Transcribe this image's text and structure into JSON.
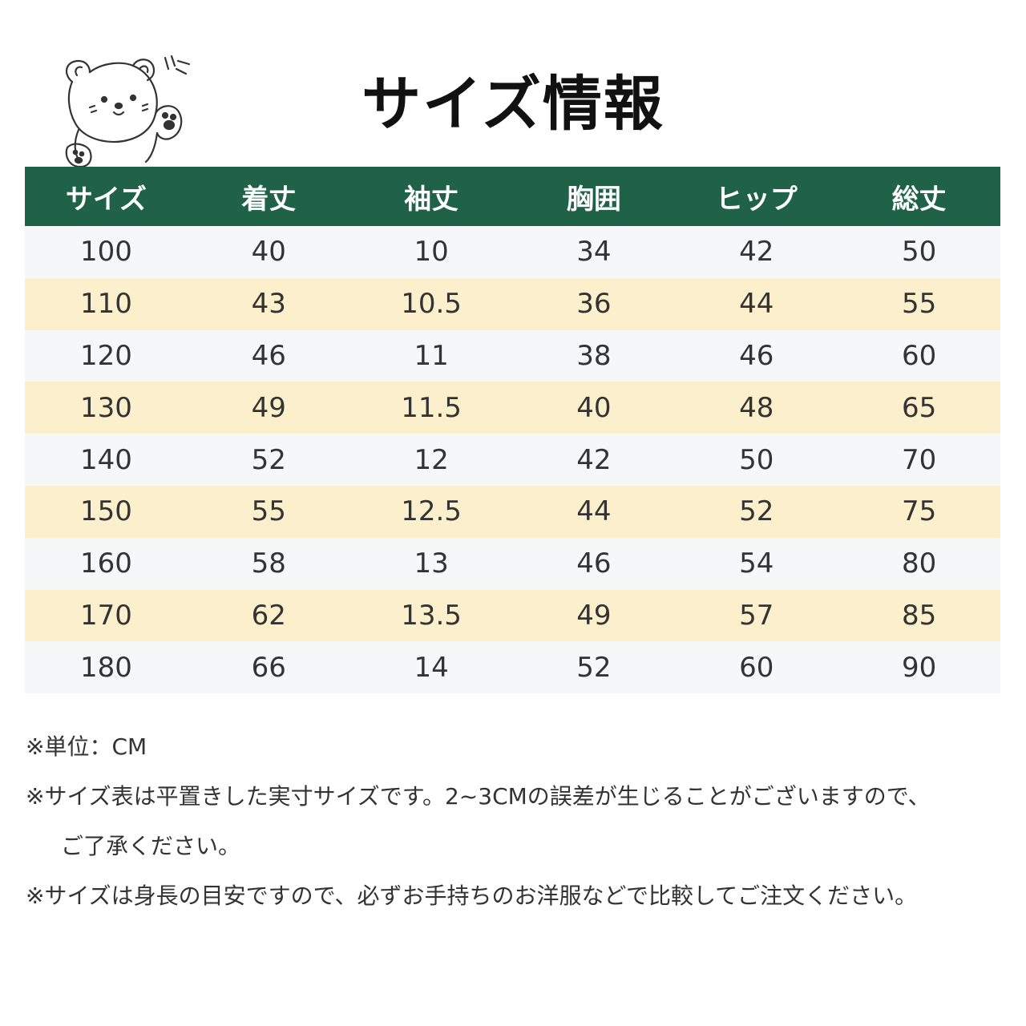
{
  "title": "サイズ情報",
  "table": {
    "headers": [
      "サイズ",
      "着丈",
      "袖丈",
      "胸囲",
      "ヒップ",
      "総丈"
    ],
    "rows": [
      [
        "100",
        "40",
        "10",
        "34",
        "42",
        "50"
      ],
      [
        "110",
        "43",
        "10.5",
        "36",
        "44",
        "55"
      ],
      [
        "120",
        "46",
        "11",
        "38",
        "46",
        "60"
      ],
      [
        "130",
        "49",
        "11.5",
        "40",
        "48",
        "65"
      ],
      [
        "140",
        "52",
        "12",
        "42",
        "50",
        "70"
      ],
      [
        "150",
        "55",
        "12.5",
        "44",
        "52",
        "75"
      ],
      [
        "160",
        "58",
        "13",
        "46",
        "54",
        "80"
      ],
      [
        "170",
        "62",
        "13.5",
        "49",
        "57",
        "85"
      ],
      [
        "180",
        "66",
        "14",
        "52",
        "60",
        "90"
      ]
    ]
  },
  "notes": {
    "unit": "※単位：CM",
    "flat_line1": "※サイズ表は平置きした実寸サイズです。2~3CMの誤差が生じることがございますので、",
    "flat_line2": "ご了承ください。",
    "compare": "※サイズは身長の目安ですので、必ずお手持ちのお洋服などで比較してご注文ください。"
  },
  "colors": {
    "header_bg": "#1f6247",
    "header_text": "#ffffff",
    "row_light": "#f6f7f8",
    "row_yellow": "#fcf0cc"
  },
  "icons": [
    "bear-illustration"
  ]
}
